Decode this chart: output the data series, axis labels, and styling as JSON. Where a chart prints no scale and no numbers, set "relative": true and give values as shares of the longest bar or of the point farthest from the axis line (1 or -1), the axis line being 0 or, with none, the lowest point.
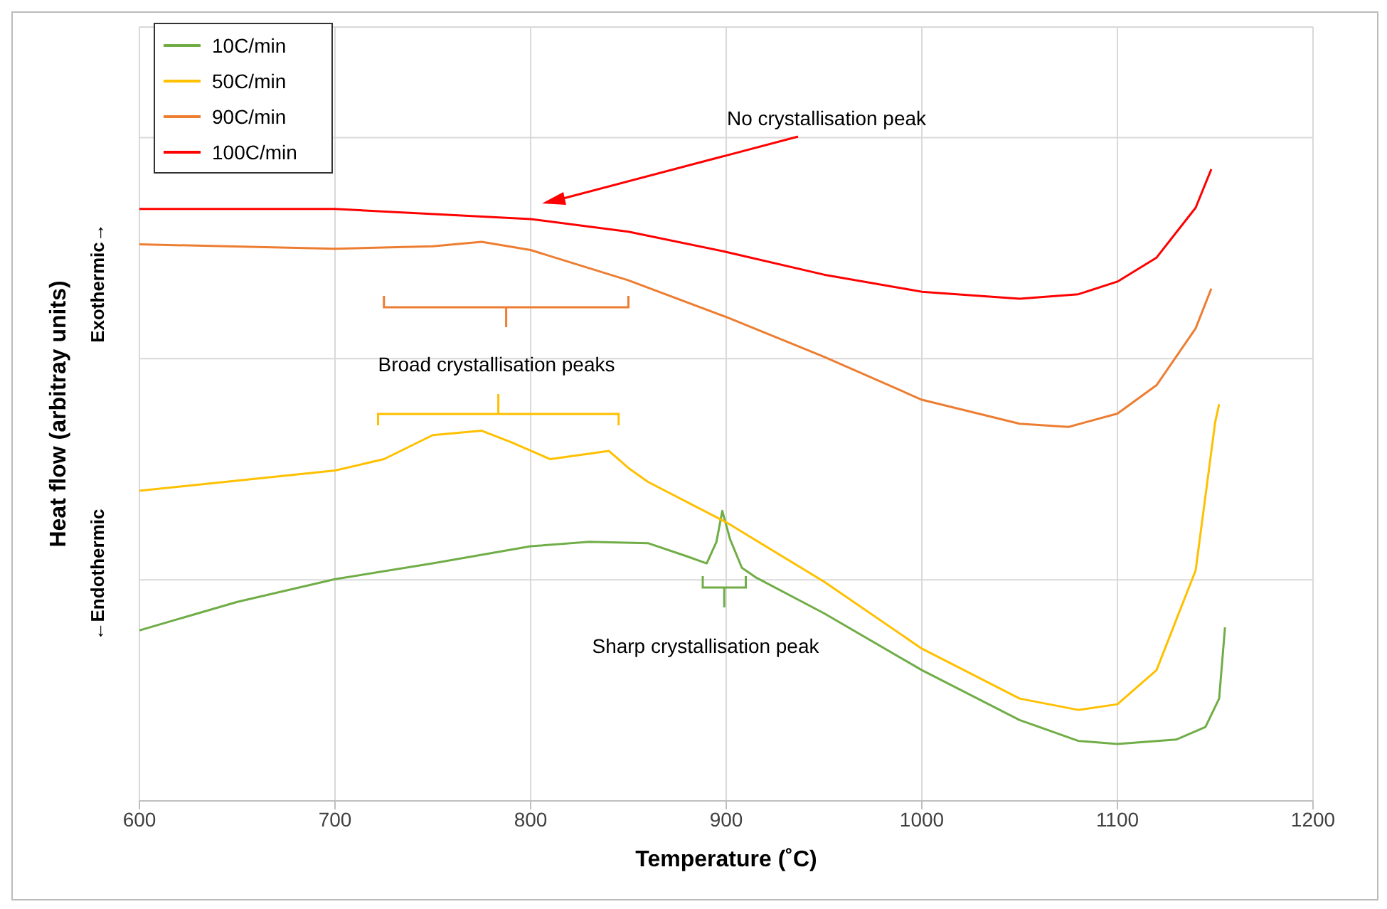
{
  "chart_data": {
    "type": "line",
    "relative": true,
    "xlabel": "Temperature (˚C)",
    "ylabel": "Heat flow (arbitray units)",
    "xlim": [
      600,
      1200
    ],
    "xticks": [
      600,
      700,
      800,
      900,
      1000,
      1100,
      1200
    ],
    "grid": true,
    "legend": "top left",
    "marker": "none",
    "line_style": "solid",
    "series": [
      {
        "name": "10C/min",
        "color": "#70ad47",
        "x": [
          600,
          650,
          700,
          750,
          800,
          830,
          860,
          880,
          890,
          895,
          898,
          902,
          908,
          915,
          950,
          1000,
          1050,
          1080,
          1100,
          1130,
          1145,
          1152,
          1155
        ],
        "values": [
          0.27,
          0.315,
          0.351,
          0.376,
          0.403,
          0.41,
          0.408,
          0.387,
          0.376,
          0.41,
          0.459,
          0.414,
          0.369,
          0.354,
          0.297,
          0.207,
          0.128,
          0.095,
          0.09,
          0.097,
          0.117,
          0.162,
          0.275
        ]
      },
      {
        "name": "50C/min",
        "color": "#ffc000",
        "x": [
          600,
          650,
          700,
          725,
          750,
          775,
          790,
          810,
          840,
          850,
          860,
          900,
          950,
          1000,
          1050,
          1080,
          1100,
          1120,
          1140,
          1150,
          1152
        ],
        "values": [
          0.491,
          0.507,
          0.523,
          0.541,
          0.579,
          0.586,
          0.568,
          0.541,
          0.554,
          0.527,
          0.505,
          0.441,
          0.347,
          0.241,
          0.162,
          0.144,
          0.153,
          0.207,
          0.365,
          0.6,
          0.628
        ]
      },
      {
        "name": "90C/min",
        "color": "#ed7d31",
        "x": [
          600,
          700,
          750,
          775,
          800,
          850,
          900,
          950,
          1000,
          1050,
          1075,
          1100,
          1120,
          1140,
          1148
        ],
        "values": [
          0.881,
          0.874,
          0.878,
          0.885,
          0.872,
          0.824,
          0.766,
          0.703,
          0.635,
          0.597,
          0.592,
          0.613,
          0.658,
          0.748,
          0.811
        ]
      },
      {
        "name": "100C/min",
        "color": "#ff0000",
        "x": [
          600,
          700,
          800,
          850,
          900,
          950,
          1000,
          1050,
          1080,
          1100,
          1120,
          1140,
          1148
        ],
        "values": [
          0.937,
          0.937,
          0.921,
          0.901,
          0.869,
          0.833,
          0.806,
          0.795,
          0.802,
          0.822,
          0.86,
          0.939,
          1
        ]
      }
    ],
    "annotations": [
      "No crystallisation peak",
      "Broad crystallisation peaks",
      "Sharp crystallisation peak",
      "←Endothermic",
      "Exothermic→"
    ]
  }
}
